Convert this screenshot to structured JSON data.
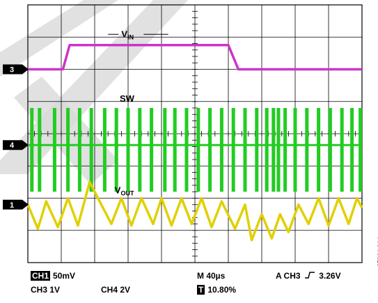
{
  "chart_data": {
    "type": "line",
    "grid": true,
    "time_per_div_us": 40,
    "divisions": {
      "x": 10,
      "y": 8
    },
    "series": [
      {
        "name": "VIN",
        "label_main": "V",
        "label_sub": "IN",
        "channel_marker": "3",
        "color": "#cc33cc",
        "y_div_points": [
          [
            0.0,
            2.0
          ],
          [
            1.05,
            2.0
          ],
          [
            1.25,
            1.25
          ],
          [
            6.0,
            1.25
          ],
          [
            6.3,
            2.0
          ],
          [
            10.0,
            2.0
          ]
        ]
      },
      {
        "name": "SW",
        "label_main": "SW",
        "channel_marker": "4",
        "color": "#22cc22",
        "baseline_div": 4.35,
        "spike_top_div": 3.2,
        "spike_bottom_div": 5.8,
        "pulse_x_div": [
          0.12,
          0.35,
          0.8,
          1.2,
          1.55,
          1.9,
          2.3,
          2.65,
          3.0,
          3.35,
          3.7,
          4.1,
          4.4,
          4.75,
          5.1,
          5.45,
          5.8,
          6.15,
          6.5,
          6.85,
          7.15,
          7.35,
          7.5,
          7.7,
          8.0,
          8.35,
          8.7,
          9.05,
          9.4,
          9.7,
          9.95
        ]
      },
      {
        "name": "VOUT",
        "label_main": "V",
        "label_sub": "OUT",
        "channel_marker": "1",
        "color": "#e0d000",
        "y_div_points": [
          [
            0.0,
            6.2
          ],
          [
            0.3,
            6.95
          ],
          [
            0.55,
            6.1
          ],
          [
            0.9,
            6.9
          ],
          [
            1.2,
            6.0
          ],
          [
            1.5,
            6.85
          ],
          [
            1.85,
            5.5
          ],
          [
            2.2,
            6.2
          ],
          [
            2.5,
            6.8
          ],
          [
            2.8,
            6.0
          ],
          [
            3.1,
            6.85
          ],
          [
            3.4,
            6.0
          ],
          [
            3.75,
            6.8
          ],
          [
            4.0,
            6.0
          ],
          [
            4.3,
            6.85
          ],
          [
            4.6,
            6.0
          ],
          [
            4.9,
            6.8
          ],
          [
            5.2,
            6.0
          ],
          [
            5.5,
            6.9
          ],
          [
            5.8,
            6.1
          ],
          [
            6.2,
            6.95
          ],
          [
            6.5,
            6.2
          ],
          [
            6.7,
            7.3
          ],
          [
            7.0,
            6.5
          ],
          [
            7.3,
            7.25
          ],
          [
            7.55,
            6.5
          ],
          [
            7.8,
            7.05
          ],
          [
            8.1,
            6.2
          ],
          [
            8.4,
            6.8
          ],
          [
            8.7,
            6.0
          ],
          [
            9.0,
            6.85
          ],
          [
            9.3,
            6.0
          ],
          [
            9.6,
            6.8
          ],
          [
            9.85,
            6.0
          ],
          [
            10.0,
            6.3
          ]
        ]
      }
    ]
  },
  "readouts": {
    "ch1_tag": "CH1",
    "ch1_scale": "50mV",
    "ch3_scale": "CH3 1V",
    "ch4_scale": "CH4 2V",
    "timebase": "M 40µs",
    "trigger_tag": "T",
    "trigger_position": "10.80%",
    "trigger_source": "A  CH3",
    "trigger_level": "3.26V"
  },
  "figure_id": "07964-014",
  "colors": {
    "watermark": "#d9d9d9",
    "grid": "#000000"
  }
}
